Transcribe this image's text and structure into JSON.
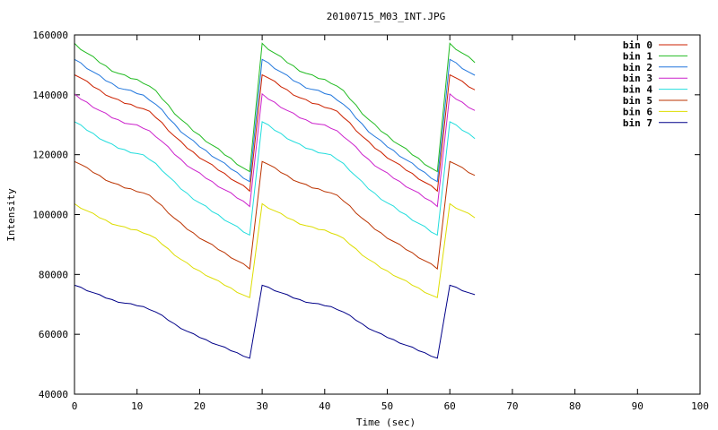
{
  "chart_data": {
    "type": "line",
    "title": "20100715_M03_INT.JPG",
    "xlabel": "Time (sec)",
    "ylabel": "Intensity",
    "xlim": [
      0,
      100
    ],
    "ylim": [
      40000,
      160000
    ],
    "x_ticks": [
      0,
      10,
      20,
      30,
      40,
      50,
      60,
      70,
      80,
      90,
      100
    ],
    "y_ticks": [
      40000,
      60000,
      80000,
      100000,
      120000,
      140000,
      160000
    ],
    "grid": false,
    "legend_position": "top-right",
    "series": [
      {
        "name": "bin 0",
        "color": "#cc2200",
        "start": 147000,
        "end": 108000
      },
      {
        "name": "bin 1",
        "color": "#22bb22",
        "start": 157000,
        "end": 114000
      },
      {
        "name": "bin 2",
        "color": "#2277dd",
        "start": 152000,
        "end": 111000
      },
      {
        "name": "bin 3",
        "color": "#cc22cc",
        "start": 140000,
        "end": 103000
      },
      {
        "name": "bin 4",
        "color": "#22dddd",
        "start": 131000,
        "end": 93000
      },
      {
        "name": "bin 5",
        "color": "#bb3300",
        "start": 118000,
        "end": 82000
      },
      {
        "name": "bin 6",
        "color": "#dddd00",
        "start": 103500,
        "end": 72000
      },
      {
        "name": "bin 7",
        "color": "#000088",
        "start": 76500,
        "end": 52000
      }
    ],
    "cycle": {
      "period": 30,
      "step": 1,
      "points_per_cycle": 29,
      "cycles": 3,
      "last_cycle_points": 5,
      "hump_center": 12,
      "hump_amplitude_fraction": 0.1
    }
  }
}
